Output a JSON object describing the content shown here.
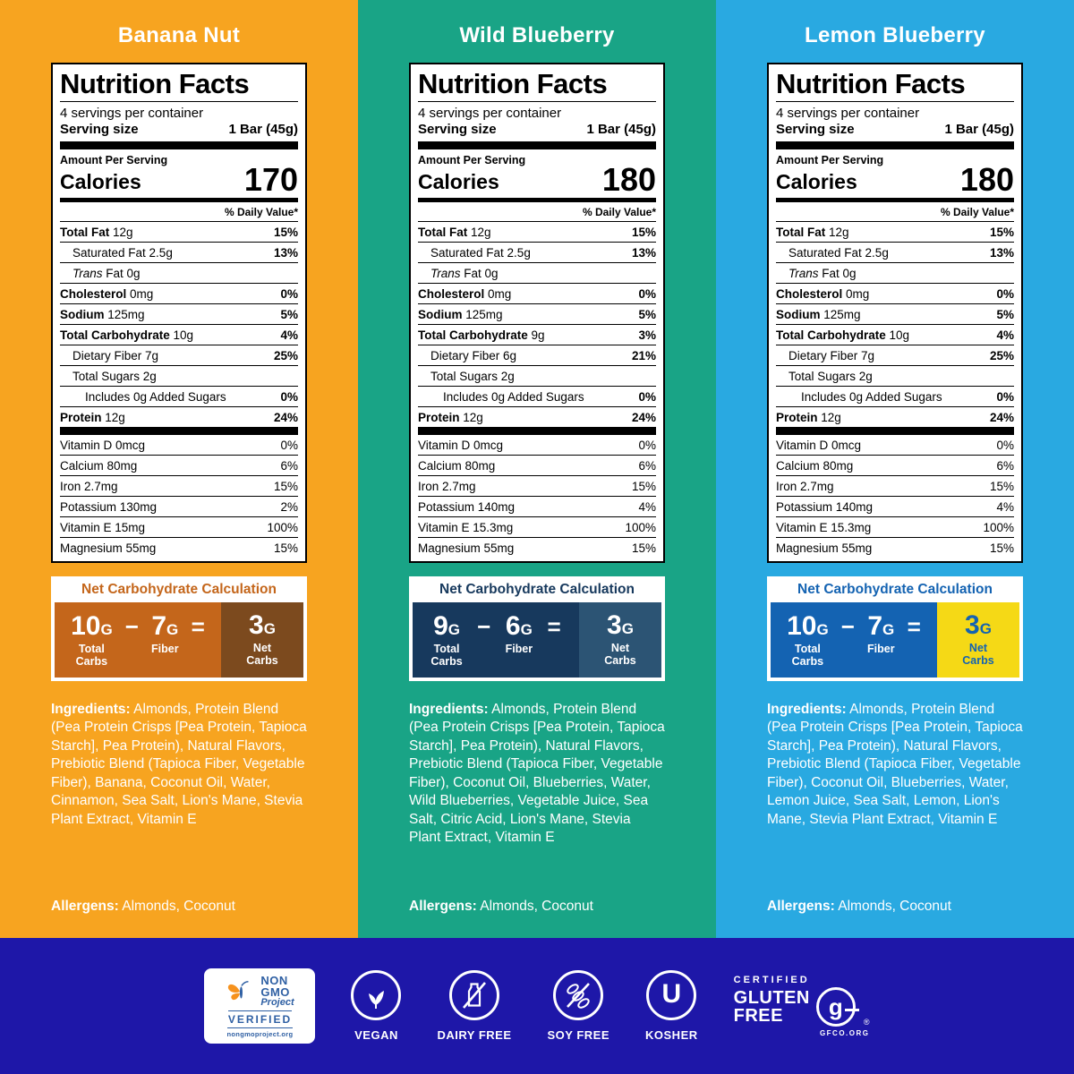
{
  "panels": [
    {
      "title": "Banana Nut",
      "colors": {
        "bg": "#F7A420",
        "calc_text": "#C4661B",
        "calc_bg": "#C4661B",
        "net_bg": "#7C4A1E",
        "net_text": "#FFFFFF"
      },
      "nutrition": {
        "title": "Nutrition Facts",
        "servings": "4 servings per container",
        "serving_size_label": "Serving size",
        "serving_size_value": "1 Bar (45g)",
        "amount_per_serving": "Amount Per Serving",
        "calories_label": "Calories",
        "calories_value": "170",
        "daily_value_note": "% Daily Value*",
        "main_rows": [
          {
            "b": "Total Fat",
            "t": " 12g",
            "pct": "15%",
            "ind": 0
          },
          {
            "t": "Saturated Fat 2.5g",
            "pct": "13%",
            "ind": 1
          },
          {
            "i": "Trans",
            "t": " Fat 0g",
            "pct": "",
            "ind": 1
          },
          {
            "b": "Cholesterol",
            "t": " 0mg",
            "pct": "0%",
            "ind": 0
          },
          {
            "b": "Sodium",
            "t": " 125mg",
            "pct": "5%",
            "ind": 0
          },
          {
            "b": "Total Carbohydrate",
            "t": " 10g",
            "pct": "4%",
            "ind": 0
          },
          {
            "t": "Dietary Fiber 7g",
            "pct": "25%",
            "ind": 1
          },
          {
            "t": "Total Sugars 2g",
            "pct": "",
            "ind": 1
          },
          {
            "t": "Includes 0g Added Sugars",
            "pct": "0%",
            "ind": 2
          },
          {
            "b": "Protein",
            "t": " 12g",
            "pct": "24%",
            "ind": 0
          }
        ],
        "vitamin_rows": [
          {
            "t": "Vitamin D 0mcg",
            "pct": "0%"
          },
          {
            "t": "Calcium 80mg",
            "pct": "6%"
          },
          {
            "t": "Iron 2.7mg",
            "pct": "15%"
          },
          {
            "t": "Potassium 130mg",
            "pct": "2%"
          },
          {
            "t": "Vitamin E 15mg",
            "pct": "100%"
          },
          {
            "t": "Magnesium 55mg",
            "pct": "15%"
          }
        ]
      },
      "net_carbs": {
        "header": "Net Carbohydrate Calculation",
        "total_value": "10",
        "unit": "G",
        "total_label": "Total\nCarbs",
        "minus": "−",
        "fiber_value": "7",
        "fiber_label": "Fiber",
        "equals": "=",
        "net_value": "3",
        "net_label": "Net\nCarbs"
      },
      "ingredients_label": "Ingredients:",
      "ingredients": "Almonds, Protein Blend (Pea Protein Crisps [Pea Protein, Tapioca Starch], Pea Protein), Natural Flavors, Prebiotic Blend (Tapioca Fiber, Vegetable Fiber), Banana, Coconut Oil, Water, Cinnamon, Sea Salt, Lion's Mane, Stevia Plant Extract, Vitamin E",
      "allergens_label": "Allergens:",
      "allergens": "Almonds, Coconut"
    },
    {
      "title": "Wild Blueberry",
      "colors": {
        "bg": "#19A486",
        "calc_text": "#17395D",
        "calc_bg": "#17395D",
        "net_bg": "#2C5474",
        "net_text": "#FFFFFF"
      },
      "nutrition": {
        "title": "Nutrition Facts",
        "servings": "4 servings per container",
        "serving_size_label": "Serving size",
        "serving_size_value": "1 Bar (45g)",
        "amount_per_serving": "Amount Per Serving",
        "calories_label": "Calories",
        "calories_value": "180",
        "daily_value_note": "% Daily Value*",
        "main_rows": [
          {
            "b": "Total Fat",
            "t": " 12g",
            "pct": "15%",
            "ind": 0
          },
          {
            "t": "Saturated Fat 2.5g",
            "pct": "13%",
            "ind": 1
          },
          {
            "i": "Trans",
            "t": " Fat 0g",
            "pct": "",
            "ind": 1
          },
          {
            "b": "Cholesterol",
            "t": " 0mg",
            "pct": "0%",
            "ind": 0
          },
          {
            "b": "Sodium",
            "t": " 125mg",
            "pct": "5%",
            "ind": 0
          },
          {
            "b": "Total Carbohydrate",
            "t": " 9g",
            "pct": "3%",
            "ind": 0
          },
          {
            "t": "Dietary Fiber 6g",
            "pct": "21%",
            "ind": 1
          },
          {
            "t": "Total Sugars 2g",
            "pct": "",
            "ind": 1
          },
          {
            "t": "Includes 0g Added Sugars",
            "pct": "0%",
            "ind": 2
          },
          {
            "b": "Protein",
            "t": " 12g",
            "pct": "24%",
            "ind": 0
          }
        ],
        "vitamin_rows": [
          {
            "t": "Vitamin D 0mcg",
            "pct": "0%"
          },
          {
            "t": "Calcium 80mg",
            "pct": "6%"
          },
          {
            "t": "Iron 2.7mg",
            "pct": "15%"
          },
          {
            "t": "Potassium 140mg",
            "pct": "4%"
          },
          {
            "t": "Vitamin E 15.3mg",
            "pct": "100%"
          },
          {
            "t": "Magnesium 55mg",
            "pct": "15%"
          }
        ]
      },
      "net_carbs": {
        "header": "Net Carbohydrate Calculation",
        "total_value": "9",
        "unit": "G",
        "total_label": "Total\nCarbs",
        "minus": "−",
        "fiber_value": "6",
        "fiber_label": "Fiber",
        "equals": "=",
        "net_value": "3",
        "net_label": "Net\nCarbs"
      },
      "ingredients_label": "Ingredients:",
      "ingredients": "Almonds, Protein Blend (Pea Protein Crisps [Pea Protein, Tapioca Starch], Pea Protein), Natural Flavors, Prebiotic Blend (Tapioca Fiber, Vegetable Fiber), Coconut Oil, Blueberries, Water, Wild Blueberries, Vegetable Juice, Sea Salt, Citric Acid, Lion's Mane, Stevia Plant Extract, Vitamin E",
      "allergens_label": "Allergens:",
      "allergens": "Almonds, Coconut"
    },
    {
      "title": "Lemon Blueberry",
      "colors": {
        "bg": "#29A9E1",
        "calc_text": "#1463B2",
        "calc_bg": "#1463B2",
        "net_bg": "#F5D916",
        "net_text": "#1463B2"
      },
      "nutrition": {
        "title": "Nutrition Facts",
        "servings": "4 servings per container",
        "serving_size_label": "Serving size",
        "serving_size_value": "1 Bar (45g)",
        "amount_per_serving": "Amount Per Serving",
        "calories_label": "Calories",
        "calories_value": "180",
        "daily_value_note": "% Daily Value*",
        "main_rows": [
          {
            "b": "Total Fat",
            "t": " 12g",
            "pct": "15%",
            "ind": 0
          },
          {
            "t": "Saturated Fat 2.5g",
            "pct": "13%",
            "ind": 1
          },
          {
            "i": "Trans",
            "t": " Fat 0g",
            "pct": "",
            "ind": 1
          },
          {
            "b": "Cholesterol",
            "t": " 0mg",
            "pct": "0%",
            "ind": 0
          },
          {
            "b": "Sodium",
            "t": " 125mg",
            "pct": "5%",
            "ind": 0
          },
          {
            "b": "Total Carbohydrate",
            "t": " 10g",
            "pct": "4%",
            "ind": 0
          },
          {
            "t": "Dietary Fiber 7g",
            "pct": "25%",
            "ind": 1
          },
          {
            "t": "Total Sugars 2g",
            "pct": "",
            "ind": 1
          },
          {
            "t": "Includes 0g Added Sugars",
            "pct": "0%",
            "ind": 2
          },
          {
            "b": "Protein",
            "t": " 12g",
            "pct": "24%",
            "ind": 0
          }
        ],
        "vitamin_rows": [
          {
            "t": "Vitamin D 0mcg",
            "pct": "0%"
          },
          {
            "t": "Calcium 80mg",
            "pct": "6%"
          },
          {
            "t": "Iron 2.7mg",
            "pct": "15%"
          },
          {
            "t": "Potassium 140mg",
            "pct": "4%"
          },
          {
            "t": "Vitamin E 15.3mg",
            "pct": "100%"
          },
          {
            "t": "Magnesium 55mg",
            "pct": "15%"
          }
        ]
      },
      "net_carbs": {
        "header": "Net Carbohydrate Calculation",
        "total_value": "10",
        "unit": "G",
        "total_label": "Total\nCarbs",
        "minus": "−",
        "fiber_value": "7",
        "fiber_label": "Fiber",
        "equals": "=",
        "net_value": "3",
        "net_label": "Net\nCarbs"
      },
      "ingredients_label": "Ingredients:",
      "ingredients": "Almonds, Protein Blend (Pea Protein Crisps [Pea Protein, Tapioca Starch], Pea Protein), Natural Flavors, Prebiotic Blend (Tapioca Fiber, Vegetable Fiber), Coconut Oil, Blueberries, Water, Lemon Juice, Sea Salt, Lemon, Lion's Mane, Stevia Plant Extract, Vitamin E",
      "allergens_label": "Allergens:",
      "allergens": "Almonds, Coconut"
    }
  ],
  "footer": {
    "bg": "#1E17A8",
    "nongmo": {
      "name_line1": "NON",
      "name_line2": "GMO",
      "project": "Project",
      "verified": "VERIFIED",
      "url": "nongmoproject.org"
    },
    "badges": [
      {
        "label": "VEGAN"
      },
      {
        "label": "DAIRY FREE"
      },
      {
        "label": "SOY FREE"
      },
      {
        "label": "KOSHER",
        "glyph": "U"
      }
    ],
    "gluten_free": {
      "certified": "CERTIFIED",
      "line1": "GLUTEN",
      "line2": "FREE",
      "glyph": "g",
      "reg": "®",
      "org": "GFCO.ORG"
    }
  }
}
